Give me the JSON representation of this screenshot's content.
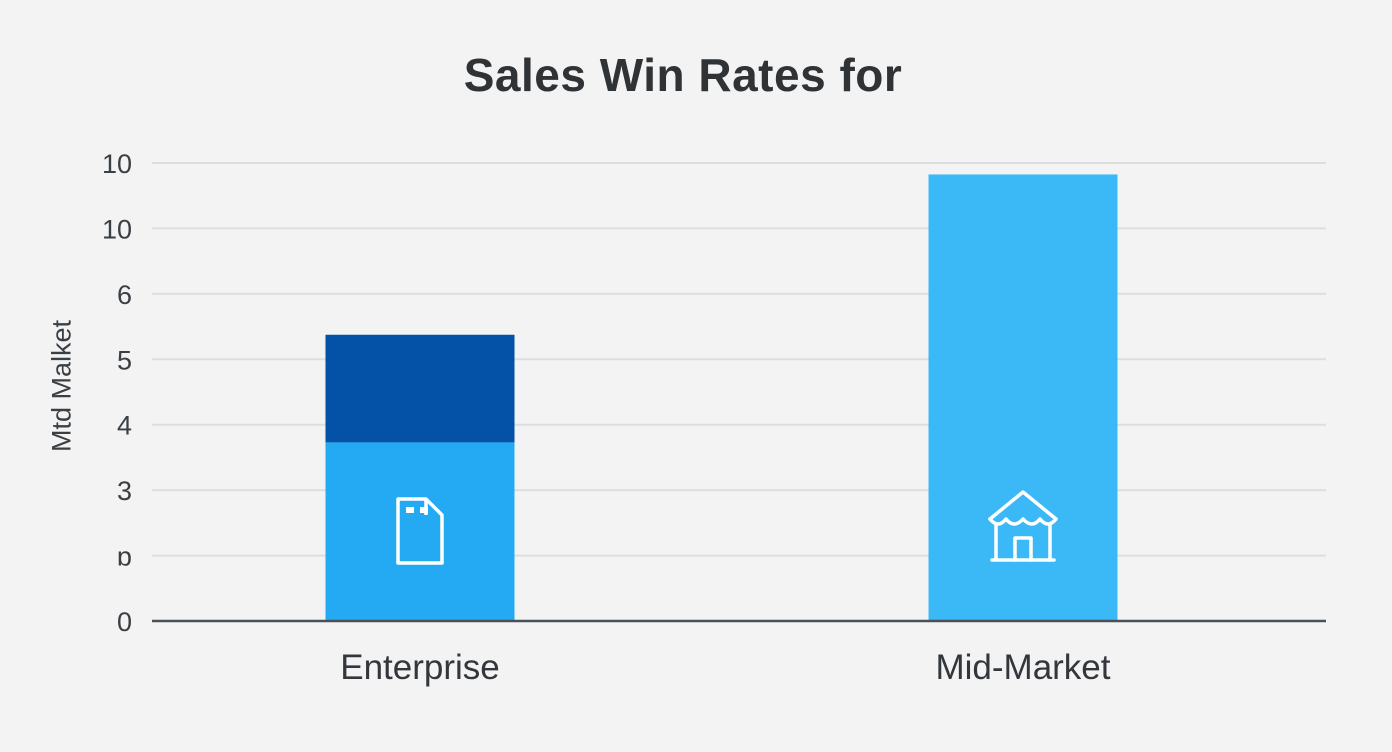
{
  "colors": {
    "background": "#f3f3f4",
    "grid": "#dcdee0",
    "axis": "#4a5058",
    "bar_light": "#24aaf3",
    "bar_dark": "#0352a8",
    "bar_midmarket": "#3bb9f6",
    "icon": "#ffffff"
  },
  "chart_data": {
    "type": "bar",
    "title": "Sales Win Rates for",
    "xlabel": "",
    "ylabel": "Mtd Malket",
    "yticks": [
      "0",
      "ɒ",
      "3",
      "4",
      "5",
      "6",
      "10",
      "10"
    ],
    "categories": [
      "Enterprise",
      "Mid-Market"
    ],
    "series": [
      {
        "values": [
          3.9,
          9.75
        ]
      },
      {
        "values": [
          2.35,
          0
        ]
      }
    ],
    "ylim": [
      0,
      10
    ],
    "grid": true,
    "legend": "none",
    "icons": [
      "office-building-icon",
      "storefront-icon"
    ]
  }
}
